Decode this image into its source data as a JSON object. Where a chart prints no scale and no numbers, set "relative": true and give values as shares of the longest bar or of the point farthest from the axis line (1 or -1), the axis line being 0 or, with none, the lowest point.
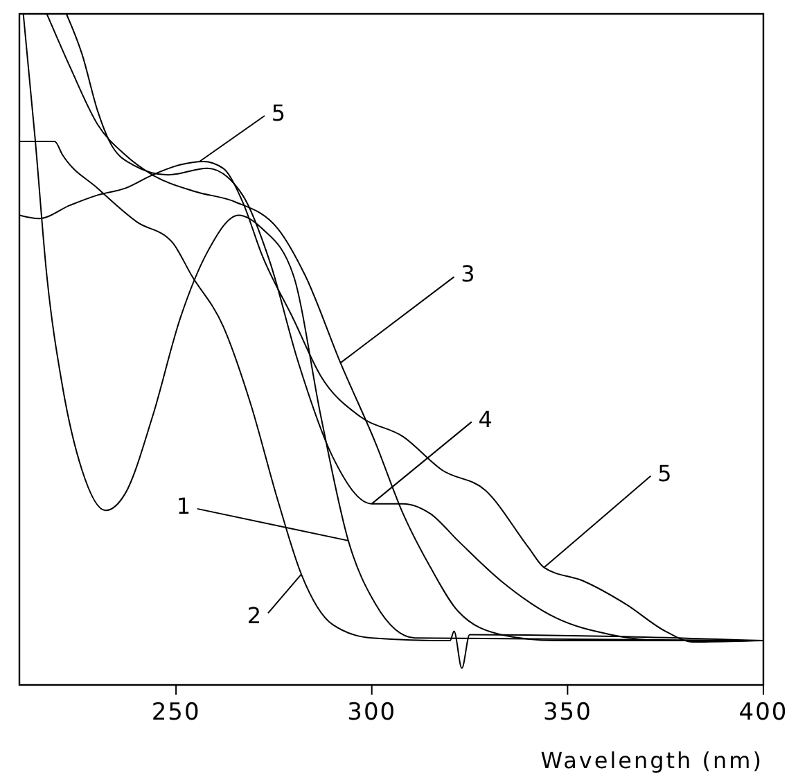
{
  "chart_data": {
    "type": "line",
    "xlabel": "Wavelength (nm)",
    "relative": true,
    "xlim": [
      210,
      400
    ],
    "xticks": [
      250,
      300,
      350,
      400
    ],
    "grid": false,
    "marker": "none",
    "line_style": "solid",
    "series": [
      {
        "color": "#000000",
        "x": [
          211,
          214,
          217,
          221,
          226,
          232,
          237,
          244,
          251,
          258,
          266,
          272,
          280,
          287,
          294,
          301,
          311,
          400
        ],
        "values": [
          1.0,
          0.815,
          0.61,
          0.445,
          0.32,
          0.26,
          0.285,
          0.4,
          0.545,
          0.645,
          0.7,
          0.68,
          0.61,
          0.4,
          0.215,
          0.12,
          0.07,
          0.066
        ]
      },
      {
        "color": "#000000",
        "x": [
          210,
          219,
          221,
          230,
          240,
          249,
          254,
          262,
          269,
          276,
          282,
          290,
          300,
          320,
          321,
          323,
          325,
          400
        ],
        "values": [
          0.81,
          0.81,
          0.79,
          0.74,
          0.69,
          0.66,
          0.61,
          0.535,
          0.42,
          0.275,
          0.165,
          0.09,
          0.07,
          0.066,
          0.08,
          0.025,
          0.075,
          0.066
        ]
      },
      {
        "color": "#000000",
        "x": [
          217,
          223,
          230,
          237,
          244,
          255,
          265,
          276,
          283,
          292,
          301,
          308,
          315,
          322,
          333,
          347,
          400
        ],
        "values": [
          1.0,
          0.92,
          0.835,
          0.79,
          0.76,
          0.735,
          0.72,
          0.68,
          0.61,
          0.48,
          0.36,
          0.255,
          0.175,
          0.11,
          0.075,
          0.066,
          0.066
        ]
      },
      {
        "color": "#000000",
        "x": [
          222,
          226,
          230,
          233,
          239,
          248,
          258,
          267,
          274,
          281,
          290,
          300,
          308,
          315,
          322,
          333,
          347,
          361,
          375,
          400
        ],
        "values": [
          1.0,
          0.94,
          0.855,
          0.81,
          0.775,
          0.76,
          0.77,
          0.73,
          0.63,
          0.485,
          0.34,
          0.27,
          0.27,
          0.255,
          0.215,
          0.155,
          0.1,
          0.075,
          0.066,
          0.066
        ]
      },
      {
        "color": "#000000",
        "x": [
          210,
          215,
          223,
          230,
          237,
          244,
          251,
          257,
          262,
          267,
          272,
          280,
          287,
          297,
          308,
          318,
          329,
          340,
          344,
          354,
          365,
          375,
          382,
          400
        ],
        "values": [
          0.7,
          0.695,
          0.715,
          0.73,
          0.74,
          0.76,
          0.775,
          0.78,
          0.77,
          0.72,
          0.64,
          0.545,
          0.46,
          0.4,
          0.37,
          0.32,
          0.29,
          0.205,
          0.175,
          0.155,
          0.12,
          0.08,
          0.064,
          0.066
        ]
      }
    ],
    "annotations": [
      {
        "text": "1",
        "x": 294,
        "y": 0.215
      },
      {
        "text": "2",
        "x": 282,
        "y": 0.165
      },
      {
        "text": "3",
        "x": 292,
        "y": 0.48
      },
      {
        "text": "4",
        "x": 300,
        "y": 0.27
      },
      {
        "text": "5",
        "x": 256,
        "y": 0.78
      },
      {
        "text": "5",
        "x": 344,
        "y": 0.175
      }
    ]
  }
}
